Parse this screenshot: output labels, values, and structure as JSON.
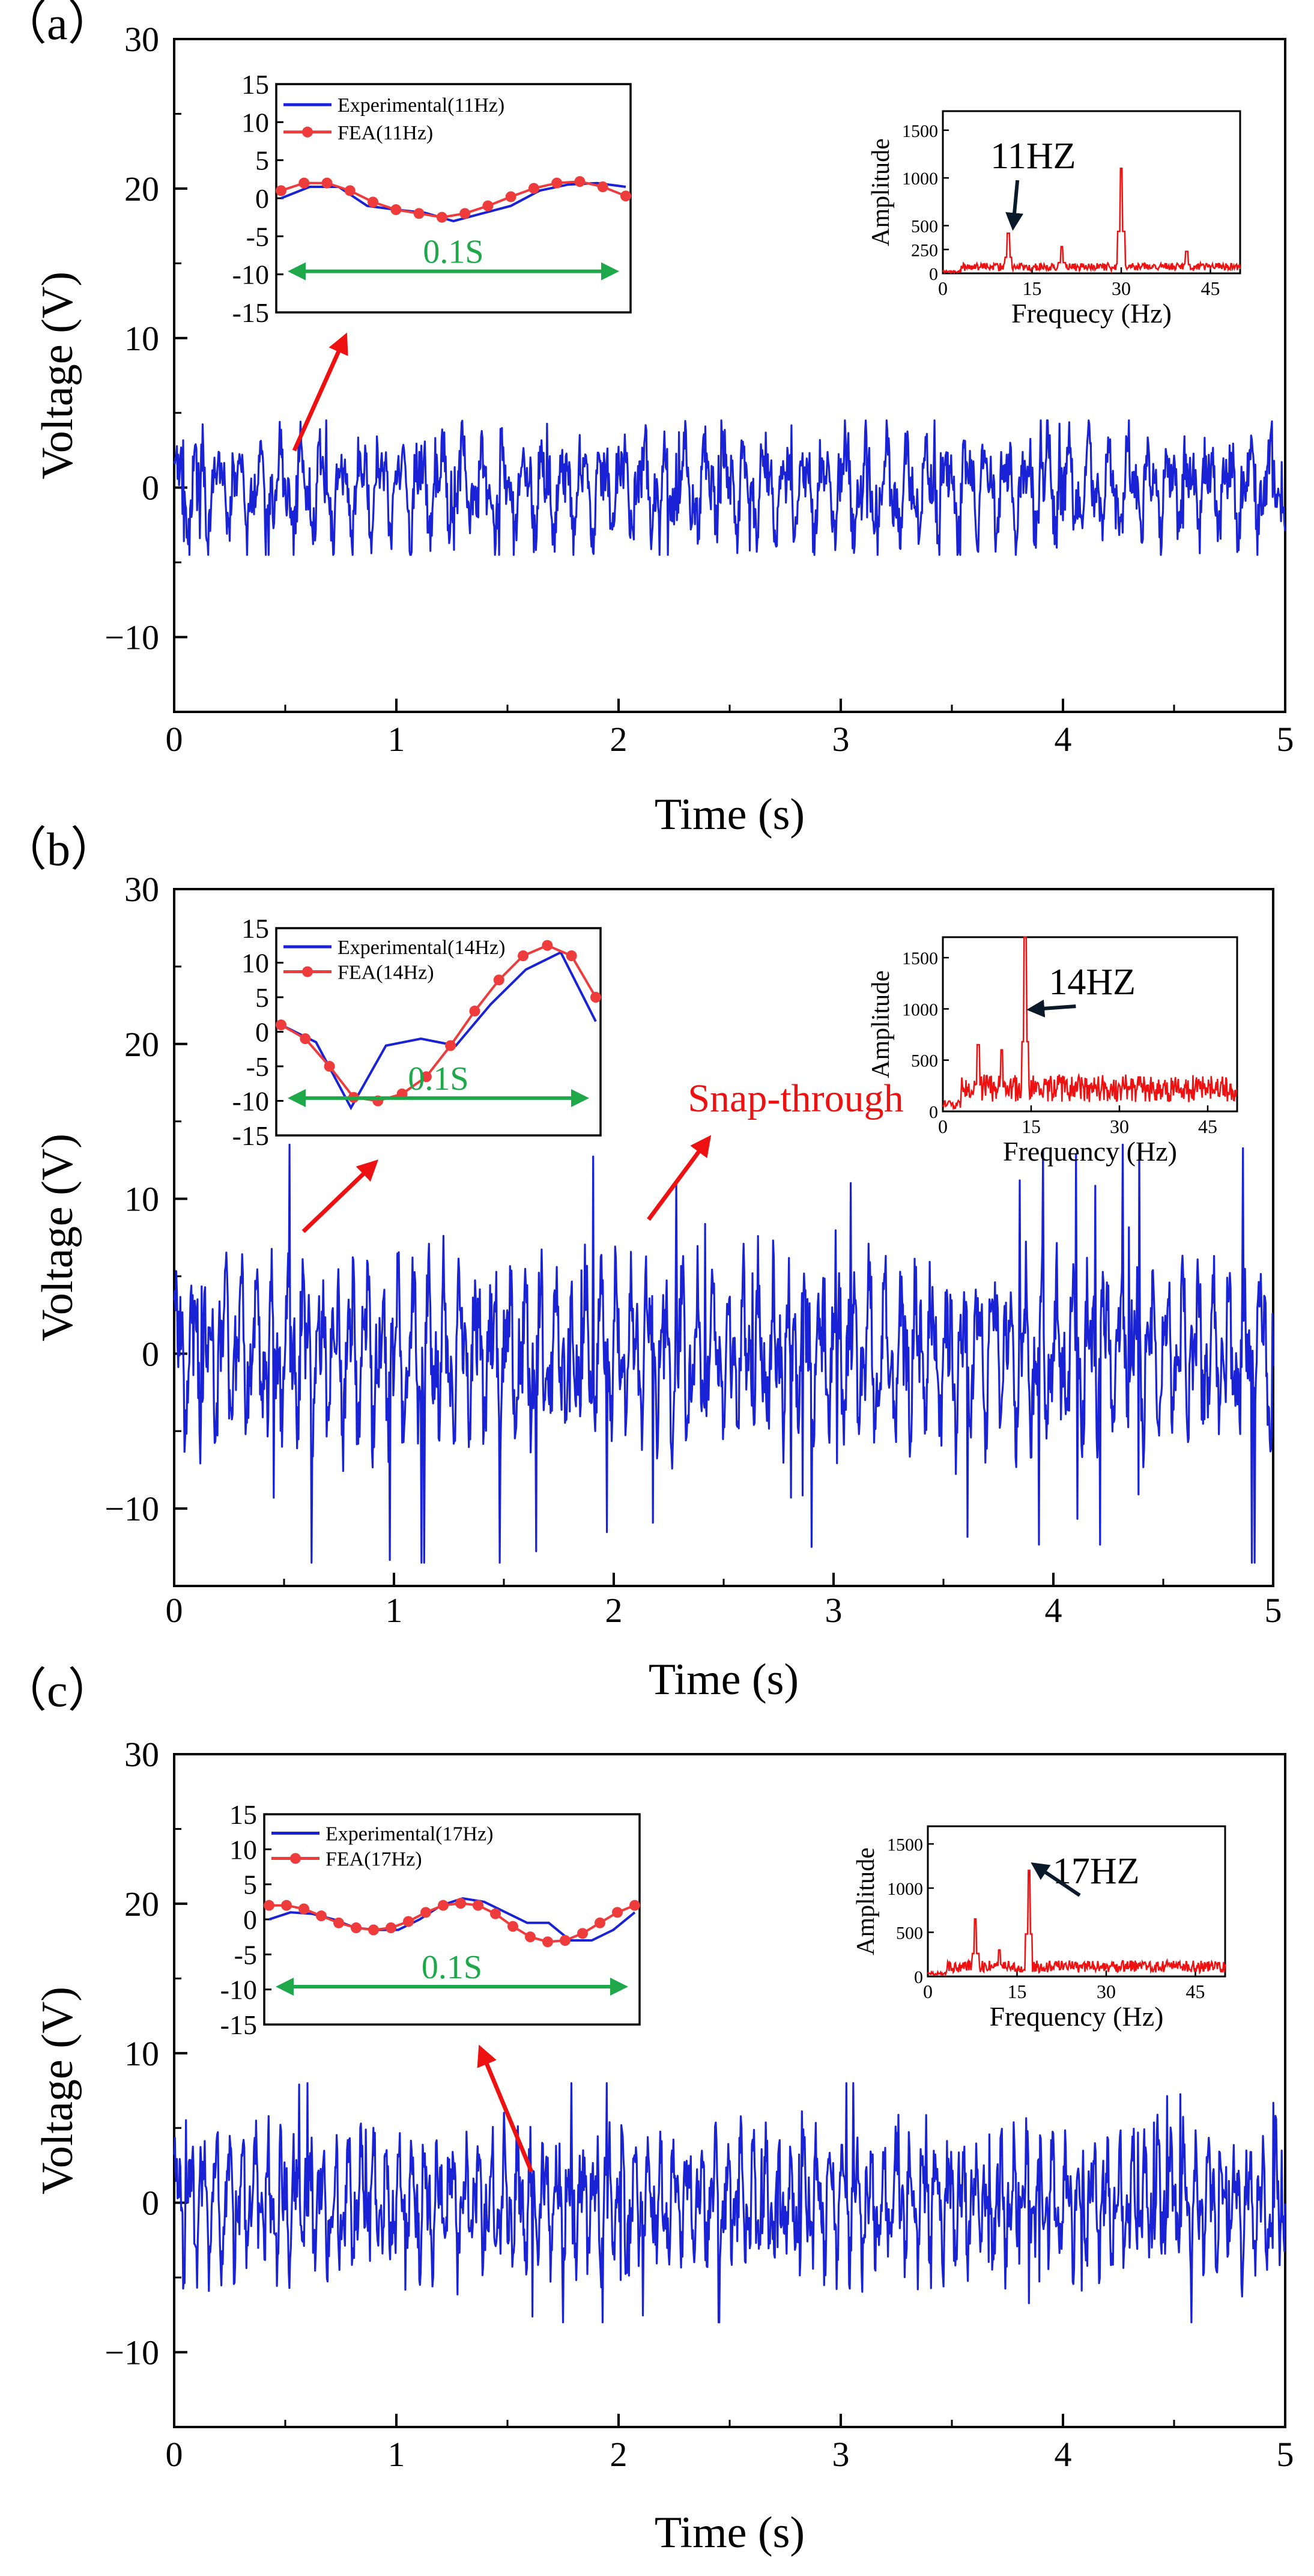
{
  "figure": {
    "background": "#ffffff"
  },
  "colors": {
    "experimental": "#1a22d6",
    "fea": "#ee3b3b",
    "spectrum": "#ee1111",
    "snap": "#ee1111",
    "scale_bar": "#1fa84a",
    "arrow_red": "#ee1111",
    "arrow_dark": "#0b1a2a"
  },
  "chart_data": [
    {
      "type": "line",
      "panel_label": "（a）",
      "xlabel": "Time (s)",
      "ylabel": "Voltage (V)",
      "xlim": [
        0,
        5
      ],
      "ylim": [
        -15,
        30
      ],
      "xticks": [
        "0",
        "1",
        "2",
        "3",
        "4",
        "5"
      ],
      "yticks": [
        "−10",
        "0",
        "10",
        "20",
        "30"
      ],
      "grid": false,
      "signal": {
        "frequency_hz": 11,
        "peak_abs_v": 4.5,
        "dominant_range_v": [
          -3.5,
          4.0
        ]
      },
      "snap_label": "",
      "inset_time": {
        "ylim": [
          -15,
          15
        ],
        "yticks": [
          "15",
          "10",
          "5",
          "0",
          "-5",
          "-10",
          "-15"
        ],
        "scale_bar_label": "0.1S",
        "legend_position": "top",
        "series": [
          {
            "name": "Experimental(11Hz)",
            "y": [
              0.0,
              1.5,
              1.5,
              -1.0,
              -1.5,
              -1.9,
              -3.0,
              -2.0,
              -1.0,
              1.0,
              1.8,
              2.0,
              1.5
            ]
          },
          {
            "name": "FEA(11Hz)",
            "y": [
              1.0,
              2.0,
              2.0,
              1.0,
              -0.5,
              -1.5,
              -2.0,
              -2.5,
              -2.0,
              -1.0,
              0.2,
              1.3,
              2.0,
              2.2,
              1.5,
              0.3
            ]
          }
        ]
      },
      "inset_fft": {
        "xlabel": "Frequecy (Hz)",
        "ylabel": "Amplitude",
        "xlim": [
          0,
          50
        ],
        "ylim": [
          0,
          1700
        ],
        "xticks": [
          "0",
          "15",
          "30",
          "45"
        ],
        "yticks": [
          "0",
          "250",
          "500",
          "1000",
          "1500"
        ],
        "annotation": "11HZ",
        "peaks": [
          {
            "f": 11,
            "a": 420
          },
          {
            "f": 30,
            "a": 1100
          },
          {
            "f": 20,
            "a": 280
          },
          {
            "f": 41,
            "a": 230
          }
        ],
        "noise_level": 90
      }
    },
    {
      "type": "line",
      "panel_label": "（b）",
      "xlabel": "Time (s)",
      "ylabel": "Voltage (V)",
      "xlim": [
        0,
        5
      ],
      "ylim": [
        -15,
        30
      ],
      "xticks": [
        "0",
        "1",
        "2",
        "3",
        "4",
        "5"
      ],
      "yticks": [
        "−10",
        "0",
        "10",
        "20",
        "30"
      ],
      "grid": false,
      "signal": {
        "frequency_hz": 14,
        "peak_abs_v": 13.5,
        "dominant_range_v": [
          -6,
          6
        ]
      },
      "snap_label": "Snap-through",
      "inset_time": {
        "ylim": [
          -15,
          15
        ],
        "yticks": [
          "15",
          "10",
          "5",
          "0",
          "-5",
          "-10",
          "-15"
        ],
        "scale_bar_label": "0.1S",
        "legend_position": "top",
        "series": [
          {
            "name": "Experimental(14Hz)",
            "y": [
              1.0,
              -1.5,
              -11.0,
              -2.0,
              -1.0,
              -2.0,
              4.0,
              9.0,
              11.5,
              1.5
            ]
          },
          {
            "name": "FEA(14Hz)",
            "y": [
              1.0,
              -1.0,
              -5.0,
              -9.5,
              -10.0,
              -9.0,
              -6.5,
              -2.0,
              3.0,
              7.5,
              11.0,
              12.5,
              11.0,
              5.0
            ]
          }
        ]
      },
      "inset_fft": {
        "xlabel": "Frequency (Hz)",
        "ylabel": "Amplitude",
        "xlim": [
          0,
          50
        ],
        "ylim": [
          0,
          1700
        ],
        "xticks": [
          "0",
          "15",
          "30",
          "45"
        ],
        "yticks": [
          "0",
          "500",
          "1000",
          "1500"
        ],
        "annotation": "14HZ",
        "peaks": [
          {
            "f": 14,
            "a": 1700
          },
          {
            "f": 6,
            "a": 650
          },
          {
            "f": 10,
            "a": 600
          }
        ],
        "noise_level": 300
      }
    },
    {
      "type": "line",
      "panel_label": "（c）",
      "xlabel": "Time (s)",
      "ylabel": "Voltage (V)",
      "xlim": [
        0,
        5
      ],
      "ylim": [
        -15,
        30
      ],
      "xticks": [
        "0",
        "1",
        "2",
        "3",
        "4",
        "5"
      ],
      "yticks": [
        "−10",
        "0",
        "10",
        "20",
        "30"
      ],
      "grid": false,
      "signal": {
        "frequency_hz": 17,
        "peak_abs_v": 8.0,
        "dominant_range_v": [
          -4.5,
          5.0
        ]
      },
      "snap_label": "",
      "inset_time": {
        "ylim": [
          -15,
          15
        ],
        "yticks": [
          "15",
          "10",
          "5",
          "0",
          "-5",
          "-10",
          "-15"
        ],
        "scale_bar_label": "0.1S",
        "legend_position": "top",
        "series": [
          {
            "name": "Experimental(17Hz)",
            "y": [
              0.0,
              1.0,
              0.8,
              0.0,
              -1.2,
              -1.5,
              -1.5,
              0.0,
              2.0,
              3.0,
              2.5,
              1.0,
              -0.5,
              -0.5,
              -3.0,
              -3.0,
              -1.5,
              1.0
            ]
          },
          {
            "name": "FEA(17Hz)",
            "y": [
              2.0,
              2.0,
              1.5,
              0.5,
              -0.5,
              -1.2,
              -1.5,
              -1.2,
              -0.3,
              1.0,
              2.0,
              2.3,
              2.0,
              0.8,
              -1.0,
              -2.5,
              -3.2,
              -3.0,
              -2.0,
              -0.5,
              1.0,
              2.0
            ]
          }
        ]
      },
      "inset_fft": {
        "xlabel": "Frequency (Hz)",
        "ylabel": "Amplitude",
        "xlim": [
          0,
          50
        ],
        "ylim": [
          0,
          1700
        ],
        "xticks": [
          "0",
          "15",
          "30",
          "45"
        ],
        "yticks": [
          "0",
          "500",
          "1000",
          "1500"
        ],
        "annotation": "17HZ",
        "peaks": [
          {
            "f": 17,
            "a": 1200
          },
          {
            "f": 8,
            "a": 650
          },
          {
            "f": 12,
            "a": 300
          }
        ],
        "noise_level": 150
      }
    }
  ]
}
